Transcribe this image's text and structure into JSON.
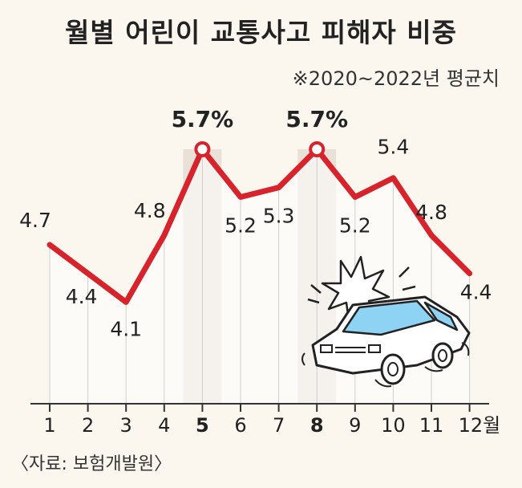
{
  "title": "월별 어린이 교통사고 피해자 비중",
  "subtitle": "※2020~2022년 평균치",
  "source": "〈자료: 보험개발원〉",
  "chart_data": {
    "type": "line",
    "categories": [
      "1",
      "2",
      "3",
      "4",
      "5",
      "6",
      "7",
      "8",
      "9",
      "10",
      "11",
      "12"
    ],
    "x_unit": "월",
    "values": [
      4.7,
      4.4,
      4.1,
      4.8,
      5.7,
      5.2,
      5.3,
      5.7,
      5.2,
      5.4,
      4.8,
      4.4
    ],
    "value_labels": [
      "4.7",
      "4.4",
      "4.1",
      "4.8",
      "5.7%",
      "5.2",
      "5.3",
      "5.7%",
      "5.2",
      "5.4",
      "4.8",
      "4.4"
    ],
    "highlight_indices": [
      4,
      7
    ],
    "xlabel": "",
    "ylabel": "",
    "grid": false,
    "colors": {
      "line": "#d7232b",
      "background": "#fbf7ee",
      "highlight_band": "#e9e0d8",
      "text": "#333333",
      "car_body": "#ffffff",
      "car_window": "#8fd3f4"
    }
  },
  "illustration": "car-crash-icon"
}
